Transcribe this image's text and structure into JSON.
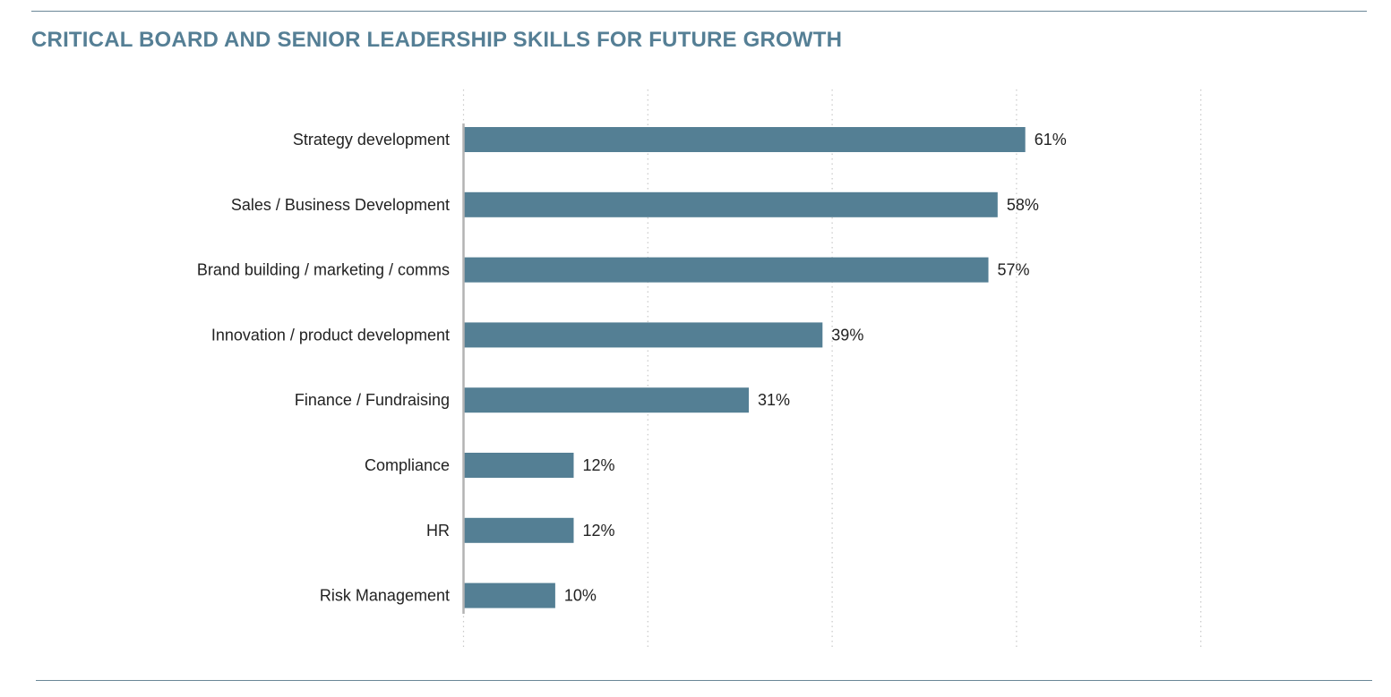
{
  "page": {
    "title": "CRITICAL BOARD AND SENIOR LEADERSHIP SKILLS FOR FUTURE GROWTH"
  },
  "colors": {
    "title": "#557f95",
    "bar": "#547f94",
    "rule": "#6a8797",
    "grid": "#c8c8c8",
    "axis": "#b3b3b3",
    "text": "#222222"
  },
  "chart_data": {
    "type": "bar",
    "orientation": "horizontal",
    "title": "CRITICAL BOARD AND SENIOR LEADERSHIP SKILLS FOR FUTURE GROWTH",
    "xlabel": "",
    "ylabel": "",
    "unit": "%",
    "xlim": [
      0,
      80
    ],
    "grid": "vertical dotted lines every 20%",
    "legend": "none",
    "categories": [
      "Strategy development",
      "Sales / Business Development",
      "Brand building / marketing / comms",
      "Innovation / product development",
      "Finance / Fundraising",
      "Compliance",
      "HR",
      "Risk Management"
    ],
    "values": [
      61,
      58,
      57,
      39,
      31,
      12,
      12,
      10
    ],
    "data_labels": [
      "61%",
      "58%",
      "57%",
      "39%",
      "31%",
      "12%",
      "12%",
      "10%"
    ]
  }
}
